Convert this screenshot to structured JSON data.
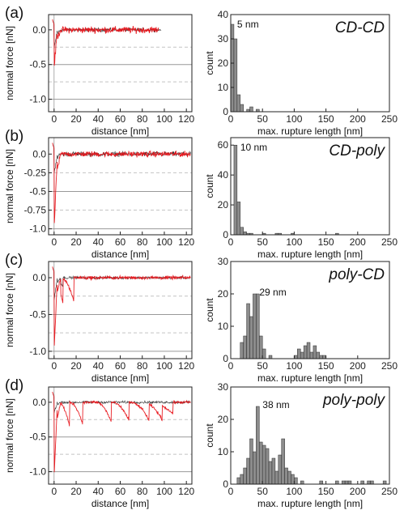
{
  "colors": {
    "black_trace": "#1a1a1a",
    "red_trace": "#e8151b",
    "bar_fill": "#8c8c8c",
    "bar_stroke": "#2a2a2a",
    "gridline": "#999999",
    "dashed_line": "#c4c4c4",
    "axis": "#222222"
  },
  "chart_data": [
    {
      "type": "line",
      "panel_label": "(a)",
      "xlabel": "distance [nm]",
      "ylabel": "normal force [nN]",
      "xlim": [
        -5,
        125
      ],
      "ylim": [
        -1.18,
        0.22
      ],
      "xticks": [
        0,
        20,
        40,
        60,
        80,
        100,
        120
      ],
      "yticks": [
        0.0,
        -0.5,
        -1.0
      ],
      "ytick_labels": [
        "0.0",
        "-0.5",
        "-1.0"
      ],
      "solid_lines": [
        -0.5,
        -1.0
      ],
      "dashed_lines": [
        -0.25,
        -0.75
      ],
      "series": [
        {
          "color": "black",
          "end": 97,
          "noise": 0.03,
          "rupture_depth": -0.28,
          "rupture_positions": []
        },
        {
          "color": "red",
          "end": 95,
          "noise": 0.05,
          "rupture_depth": -0.55,
          "rupture_positions": []
        }
      ]
    },
    {
      "type": "bar",
      "title": "CD-CD",
      "peak_label": "5 nm",
      "xlabel": "max. rupture length [nm]",
      "ylabel": "count",
      "xlim": [
        0,
        250
      ],
      "ylim": [
        0,
        40
      ],
      "xticks": [
        0,
        50,
        100,
        150,
        200,
        250
      ],
      "yticks": [
        0,
        10,
        20,
        30,
        40
      ],
      "bin_width": 5,
      "bins": [
        [
          0,
          36
        ],
        [
          5,
          30
        ],
        [
          10,
          7
        ],
        [
          15,
          3
        ],
        [
          25,
          1
        ],
        [
          30,
          2
        ],
        [
          40,
          1
        ]
      ]
    },
    {
      "type": "line",
      "panel_label": "(b)",
      "xlabel": "distance [nm]",
      "ylabel": "normal force [nN]",
      "xlim": [
        -5,
        125
      ],
      "ylim": [
        -1.08,
        0.22
      ],
      "xticks": [
        0,
        20,
        40,
        60,
        80,
        100,
        120
      ],
      "yticks": [
        0.0,
        -0.25,
        -0.5,
        -0.75,
        -1.0
      ],
      "ytick_labels": [
        "0.0",
        "-0.25",
        "-0.5",
        "-0.75",
        "-1.0"
      ],
      "solid_lines": [
        -0.5,
        -1.0
      ],
      "dashed_lines": [
        -0.25,
        -0.75
      ],
      "series": [
        {
          "color": "black",
          "end": 124,
          "noise": 0.035,
          "rupture_depth": -0.25,
          "rupture_positions": []
        },
        {
          "color": "red",
          "end": 124,
          "noise": 0.04,
          "rupture_depth": -1.02,
          "rupture_positions": []
        }
      ]
    },
    {
      "type": "bar",
      "title": "CD-poly",
      "peak_label": "10 nm",
      "xlabel": "max. rupture length [nm]",
      "ylabel": "count",
      "xlim": [
        0,
        250
      ],
      "ylim": [
        0,
        65
      ],
      "xticks": [
        0,
        50,
        100,
        150,
        200,
        250
      ],
      "yticks": [
        0,
        20,
        40,
        60
      ],
      "bin_width": 5,
      "bins": [
        [
          5,
          60
        ],
        [
          10,
          22
        ],
        [
          15,
          5
        ],
        [
          20,
          2
        ],
        [
          25,
          1
        ],
        [
          30,
          1
        ],
        [
          50,
          1
        ],
        [
          70,
          1
        ],
        [
          75,
          1
        ],
        [
          95,
          1
        ],
        [
          165,
          1
        ]
      ]
    },
    {
      "type": "line",
      "panel_label": "(c)",
      "xlabel": "distance [nm]",
      "ylabel": "normal force [nN]",
      "xlim": [
        -5,
        125
      ],
      "ylim": [
        -1.1,
        0.22
      ],
      "xticks": [
        0,
        20,
        40,
        60,
        80,
        100,
        120
      ],
      "yticks": [
        0.0,
        -0.5,
        -1.0
      ],
      "ytick_labels": [
        "0.0",
        "-0.5",
        "-1.0"
      ],
      "solid_lines": [
        -0.5,
        -1.0
      ],
      "dashed_lines": [
        -0.25,
        -0.75
      ],
      "series": [
        {
          "color": "black",
          "end": 124,
          "noise": 0.02,
          "rupture_depth": -0.3,
          "rupture_positions": [
            8
          ]
        },
        {
          "color": "red",
          "end": 124,
          "noise": 0.025,
          "rupture_depth": -1.0,
          "rupture_positions": [
            8,
            18
          ]
        }
      ]
    },
    {
      "type": "bar",
      "title": "poly-CD",
      "peak_label": "29 nm",
      "xlabel": "max. rupture length [nm]",
      "ylabel": "count",
      "xlim": [
        0,
        250
      ],
      "ylim": [
        0,
        30
      ],
      "xticks": [
        0,
        50,
        100,
        150,
        200,
        250
      ],
      "yticks": [
        0,
        10,
        20,
        30
      ],
      "bin_width": 5,
      "bins": [
        [
          15,
          5
        ],
        [
          20,
          7
        ],
        [
          25,
          17
        ],
        [
          30,
          13
        ],
        [
          35,
          20
        ],
        [
          40,
          20
        ],
        [
          45,
          7
        ],
        [
          50,
          3
        ],
        [
          60,
          1
        ],
        [
          100,
          1
        ],
        [
          105,
          3
        ],
        [
          110,
          2
        ],
        [
          115,
          4
        ],
        [
          120,
          5
        ],
        [
          125,
          2
        ],
        [
          130,
          4
        ],
        [
          135,
          2
        ],
        [
          140,
          1
        ],
        [
          145,
          1
        ]
      ]
    },
    {
      "type": "line",
      "panel_label": "(d)",
      "xlabel": "distance [nm]",
      "ylabel": "normal force [nN]",
      "xlim": [
        -5,
        125
      ],
      "ylim": [
        -1.18,
        0.22
      ],
      "xticks": [
        0,
        20,
        40,
        60,
        80,
        100,
        120
      ],
      "yticks": [
        0.0,
        -0.5,
        -1.0
      ],
      "ytick_labels": [
        "0.0",
        "-0.5",
        "-1.0"
      ],
      "solid_lines": [
        -0.5,
        -1.0
      ],
      "dashed_lines": [
        -0.25,
        -0.75
      ],
      "series": [
        {
          "color": "black",
          "end": 124,
          "noise": 0.02,
          "rupture_depth": -0.15,
          "rupture_positions": []
        },
        {
          "color": "red",
          "end": 124,
          "noise": 0.02,
          "rupture_depth": -1.1,
          "rupture_positions": [
            14,
            26,
            52,
            68,
            86,
            98,
            108
          ]
        }
      ]
    },
    {
      "type": "bar",
      "title": "poly-poly",
      "peak_label": "38 nm",
      "xlabel": "max. rupture length [nm]",
      "ylabel": "count",
      "xlim": [
        0,
        250
      ],
      "ylim": [
        0,
        30
      ],
      "xticks": [
        0,
        50,
        100,
        150,
        200,
        250
      ],
      "yticks": [
        0,
        10,
        20,
        30
      ],
      "bin_width": 5,
      "bins": [
        [
          10,
          2
        ],
        [
          15,
          3
        ],
        [
          20,
          5
        ],
        [
          25,
          8
        ],
        [
          30,
          14
        ],
        [
          35,
          10
        ],
        [
          40,
          24
        ],
        [
          45,
          13
        ],
        [
          50,
          12
        ],
        [
          55,
          11
        ],
        [
          60,
          7
        ],
        [
          65,
          8
        ],
        [
          70,
          4
        ],
        [
          75,
          9
        ],
        [
          80,
          14
        ],
        [
          85,
          5
        ],
        [
          90,
          4
        ],
        [
          95,
          3
        ],
        [
          100,
          2
        ],
        [
          110,
          1
        ],
        [
          140,
          1
        ],
        [
          165,
          1
        ],
        [
          175,
          1
        ],
        [
          180,
          1
        ],
        [
          185,
          1
        ],
        [
          205,
          1
        ],
        [
          215,
          1
        ],
        [
          220,
          1
        ],
        [
          240,
          1
        ]
      ]
    }
  ]
}
